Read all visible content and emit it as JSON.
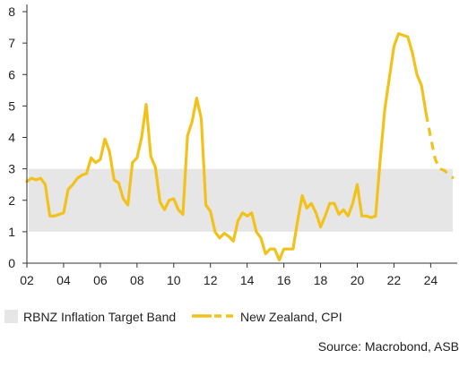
{
  "chart_data": {
    "type": "line",
    "title": "",
    "xlabel": "",
    "ylabel": "",
    "xlim": [
      2002.0,
      2025.3
    ],
    "ylim": [
      0,
      8
    ],
    "x_ticks": [
      2002,
      2004,
      2006,
      2008,
      2010,
      2012,
      2014,
      2016,
      2018,
      2020,
      2022,
      2024
    ],
    "x_tick_labels": [
      "02",
      "04",
      "06",
      "08",
      "10",
      "12",
      "14",
      "16",
      "18",
      "20",
      "22",
      "24"
    ],
    "y_ticks": [
      0,
      1,
      2,
      3,
      4,
      5,
      6,
      7,
      8
    ],
    "y_tick_labels": [
      "0",
      "1",
      "2",
      "3",
      "4",
      "5",
      "6",
      "7",
      "8"
    ],
    "grid": false,
    "band": {
      "name": "RBNZ Inflation Target Band",
      "y_from": 1,
      "y_to": 3,
      "color": "#e6e6e6"
    },
    "series": [
      {
        "name": "New Zealand, CPI",
        "color": "#f2c21b",
        "actual": [
          [
            2002.0,
            2.6
          ],
          [
            2002.25,
            2.7
          ],
          [
            2002.5,
            2.65
          ],
          [
            2002.75,
            2.7
          ],
          [
            2003.0,
            2.5
          ],
          [
            2003.25,
            1.5
          ],
          [
            2003.5,
            1.5
          ],
          [
            2003.75,
            1.55
          ],
          [
            2004.0,
            1.6
          ],
          [
            2004.25,
            2.35
          ],
          [
            2004.5,
            2.5
          ],
          [
            2004.75,
            2.7
          ],
          [
            2005.0,
            2.8
          ],
          [
            2005.25,
            2.85
          ],
          [
            2005.5,
            3.35
          ],
          [
            2005.75,
            3.2
          ],
          [
            2006.0,
            3.3
          ],
          [
            2006.25,
            3.95
          ],
          [
            2006.5,
            3.55
          ],
          [
            2006.75,
            2.65
          ],
          [
            2007.0,
            2.55
          ],
          [
            2007.25,
            2.05
          ],
          [
            2007.5,
            1.85
          ],
          [
            2007.75,
            3.2
          ],
          [
            2008.0,
            3.35
          ],
          [
            2008.25,
            4.0
          ],
          [
            2008.5,
            5.05
          ],
          [
            2008.75,
            3.4
          ],
          [
            2009.0,
            3.05
          ],
          [
            2009.25,
            1.95
          ],
          [
            2009.5,
            1.7
          ],
          [
            2009.75,
            2.0
          ],
          [
            2010.0,
            2.05
          ],
          [
            2010.25,
            1.7
          ],
          [
            2010.5,
            1.55
          ],
          [
            2010.75,
            4.05
          ],
          [
            2011.0,
            4.5
          ],
          [
            2011.25,
            5.25
          ],
          [
            2011.5,
            4.6
          ],
          [
            2011.75,
            1.85
          ],
          [
            2012.0,
            1.65
          ],
          [
            2012.25,
            1.0
          ],
          [
            2012.5,
            0.8
          ],
          [
            2012.75,
            0.95
          ],
          [
            2013.0,
            0.85
          ],
          [
            2013.25,
            0.7
          ],
          [
            2013.5,
            1.35
          ],
          [
            2013.75,
            1.6
          ],
          [
            2014.0,
            1.5
          ],
          [
            2014.25,
            1.6
          ],
          [
            2014.5,
            1.0
          ],
          [
            2014.75,
            0.8
          ],
          [
            2015.0,
            0.3
          ],
          [
            2015.25,
            0.45
          ],
          [
            2015.5,
            0.45
          ],
          [
            2015.75,
            0.1
          ],
          [
            2016.0,
            0.45
          ],
          [
            2016.25,
            0.45
          ],
          [
            2016.5,
            0.45
          ],
          [
            2016.75,
            1.35
          ],
          [
            2017.0,
            2.15
          ],
          [
            2017.25,
            1.75
          ],
          [
            2017.5,
            1.9
          ],
          [
            2017.75,
            1.6
          ],
          [
            2018.0,
            1.15
          ],
          [
            2018.25,
            1.5
          ],
          [
            2018.5,
            1.9
          ],
          [
            2018.75,
            1.9
          ],
          [
            2019.0,
            1.55
          ],
          [
            2019.25,
            1.7
          ],
          [
            2019.5,
            1.5
          ],
          [
            2019.75,
            1.9
          ],
          [
            2020.0,
            2.5
          ],
          [
            2020.25,
            1.5
          ],
          [
            2020.5,
            1.5
          ],
          [
            2020.75,
            1.45
          ],
          [
            2021.0,
            1.5
          ],
          [
            2021.25,
            3.3
          ],
          [
            2021.5,
            4.9
          ],
          [
            2021.75,
            5.9
          ],
          [
            2022.0,
            6.9
          ],
          [
            2022.25,
            7.3
          ],
          [
            2022.5,
            7.25
          ],
          [
            2022.75,
            7.2
          ],
          [
            2023.0,
            6.7
          ],
          [
            2023.25,
            6.0
          ],
          [
            2023.5,
            5.65
          ],
          [
            2023.75,
            4.75
          ]
        ],
        "forecast": [
          [
            2023.75,
            4.75
          ],
          [
            2024.0,
            4.0
          ],
          [
            2024.25,
            3.3
          ],
          [
            2024.5,
            3.0
          ],
          [
            2024.75,
            2.95
          ],
          [
            2025.0,
            2.8
          ],
          [
            2025.25,
            2.7
          ]
        ]
      }
    ],
    "legend": {
      "placement": "bottom",
      "entries": [
        {
          "label": "RBNZ Inflation Target Band",
          "kind": "box"
        },
        {
          "label": "New Zealand, CPI",
          "kind": "line-actual-forecast"
        }
      ]
    },
    "source": "Source: Macrobond, ASB"
  }
}
